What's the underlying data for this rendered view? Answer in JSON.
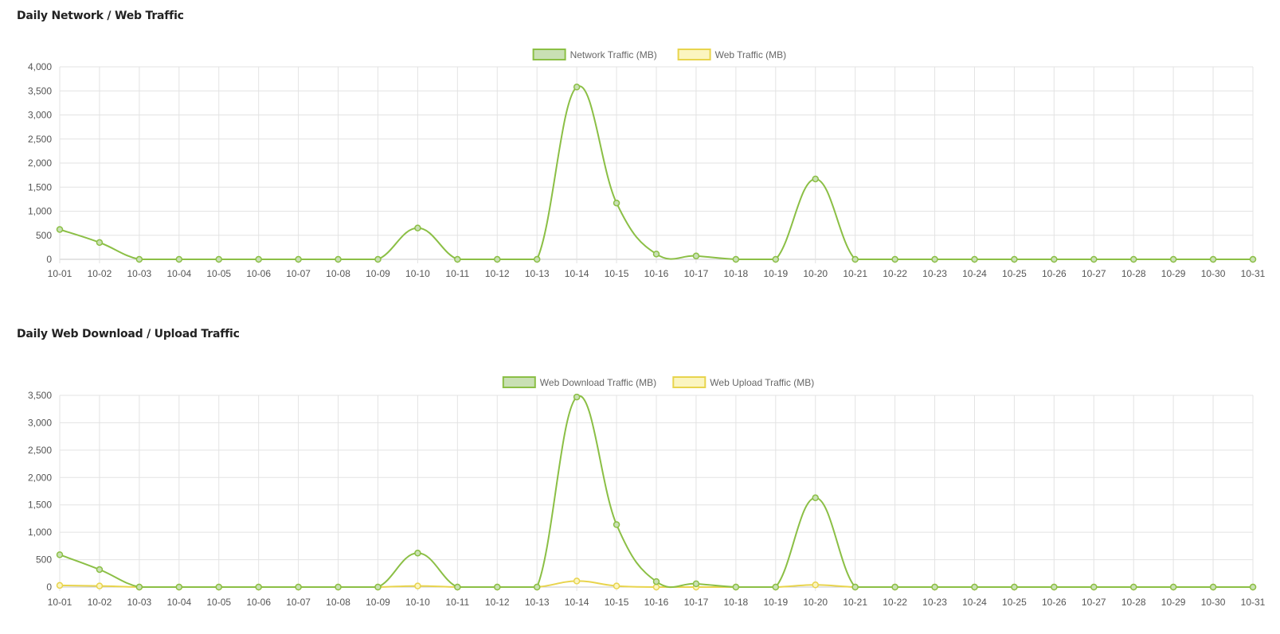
{
  "panels": [
    {
      "title": "Daily Network / Web Traffic",
      "chart_data": {
        "type": "line",
        "x": [
          "10-01",
          "10-02",
          "10-03",
          "10-04",
          "10-05",
          "10-06",
          "10-07",
          "10-08",
          "10-09",
          "10-10",
          "10-11",
          "10-12",
          "10-13",
          "10-14",
          "10-15",
          "10-16",
          "10-17",
          "10-18",
          "10-19",
          "10-20",
          "10-21",
          "10-22",
          "10-23",
          "10-24",
          "10-25",
          "10-26",
          "10-27",
          "10-28",
          "10-29",
          "10-30",
          "10-31"
        ],
        "series": [
          {
            "name": "Network Traffic (MB)",
            "color": "#8bbf45",
            "fill": "#c9e0b4",
            "values": [
              620,
              350,
              0,
              0,
              0,
              0,
              0,
              0,
              0,
              650,
              0,
              0,
              0,
              3580,
              1170,
              110,
              70,
              0,
              0,
              1670,
              0,
              0,
              0,
              0,
              0,
              0,
              0,
              0,
              0,
              0,
              0
            ]
          },
          {
            "name": "Web Traffic (MB)",
            "color": "#e8d44d",
            "fill": "#fbf5c0",
            "values": [
              0,
              0,
              0,
              0,
              0,
              0,
              0,
              0,
              0,
              0,
              0,
              0,
              0,
              0,
              0,
              0,
              0,
              0,
              0,
              0,
              0,
              0,
              0,
              0,
              0,
              0,
              0,
              0,
              0,
              0,
              0
            ],
            "hidden": true
          }
        ],
        "ylim": [
          0,
          4000
        ],
        "yticks": [
          0,
          500,
          1000,
          1500,
          2000,
          2500,
          3000,
          3500,
          4000
        ],
        "ytick_labels": [
          "0",
          "500",
          "1,000",
          "1,500",
          "2,000",
          "2,500",
          "3,000",
          "3,500",
          "4,000"
        ],
        "grid": true,
        "legend": "top-center"
      }
    },
    {
      "title": "Daily Web Download / Upload Traffic",
      "chart_data": {
        "type": "line",
        "x": [
          "10-01",
          "10-02",
          "10-03",
          "10-04",
          "10-05",
          "10-06",
          "10-07",
          "10-08",
          "10-09",
          "10-10",
          "10-11",
          "10-12",
          "10-13",
          "10-14",
          "10-15",
          "10-16",
          "10-17",
          "10-18",
          "10-19",
          "10-20",
          "10-21",
          "10-22",
          "10-23",
          "10-24",
          "10-25",
          "10-26",
          "10-27",
          "10-28",
          "10-29",
          "10-30",
          "10-31"
        ],
        "series": [
          {
            "name": "Web Download Traffic (MB)",
            "color": "#8bbf45",
            "fill": "#c9e0b4",
            "values": [
              590,
              320,
              0,
              0,
              0,
              0,
              0,
              0,
              0,
              620,
              0,
              0,
              0,
              3470,
              1140,
              100,
              60,
              0,
              0,
              1630,
              0,
              0,
              0,
              0,
              0,
              0,
              0,
              0,
              0,
              0,
              0
            ]
          },
          {
            "name": "Web Upload Traffic (MB)",
            "color": "#e8d44d",
            "fill": "#fbf5c0",
            "values": [
              30,
              20,
              0,
              0,
              0,
              0,
              0,
              0,
              0,
              20,
              0,
              0,
              0,
              110,
              20,
              0,
              0,
              0,
              0,
              40,
              0,
              0,
              0,
              0,
              0,
              0,
              0,
              0,
              0,
              0,
              0
            ]
          }
        ],
        "ylim": [
          0,
          3500
        ],
        "yticks": [
          0,
          500,
          1000,
          1500,
          2000,
          2500,
          3000,
          3500
        ],
        "ytick_labels": [
          "0",
          "500",
          "1,000",
          "1,500",
          "2,000",
          "2,500",
          "3,000",
          "3,500"
        ],
        "grid": true,
        "legend": "top-center"
      }
    }
  ]
}
